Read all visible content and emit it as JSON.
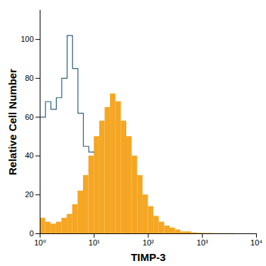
{
  "chart_data": {
    "type": "histogram",
    "x_label": "TIMP-3",
    "y_label": "Relative Cell Number",
    "log": "x",
    "grid": false,
    "bins": [
      1,
      1.259,
      1.585,
      1.995,
      2.512,
      3.162,
      3.981,
      5.012,
      6.31,
      7.943,
      10,
      12.59,
      15.85,
      19.95,
      25.12,
      31.62,
      39.81,
      50.12,
      63.1,
      79.43,
      100,
      125.9,
      158.5,
      199.5,
      251.2,
      316.2,
      398.1,
      501.2,
      631,
      794.3,
      1000,
      1259,
      1585,
      1995,
      2512,
      3162,
      3981,
      5012,
      6310,
      7943,
      10000
    ],
    "series": [
      {
        "type": "step",
        "color": "#2b5f80",
        "values": [
          60,
          68,
          64,
          70,
          80,
          102,
          85,
          62,
          45,
          42,
          null,
          null,
          null,
          null,
          null,
          null,
          null,
          null,
          null,
          null,
          null,
          null,
          null,
          null,
          null,
          null,
          null,
          null,
          null,
          null,
          null,
          null,
          null,
          null,
          null,
          null,
          null,
          null,
          null,
          null
        ]
      },
      {
        "type": "filled",
        "color": "#f5a623",
        "values": [
          8,
          6,
          5,
          6,
          8,
          10,
          15,
          22,
          30,
          40,
          50,
          58,
          65,
          72,
          68,
          58,
          50,
          40,
          30,
          20,
          14,
          9,
          6,
          4,
          3,
          2,
          1,
          1,
          0.5,
          0.3,
          0.2,
          0.2,
          0.1,
          0.1,
          0.1,
          0.1,
          0,
          0,
          0,
          0
        ]
      }
    ],
    "xlim": [
      1,
      10000
    ],
    "xticks": [
      {
        "value": 1,
        "label": "10⁰"
      },
      {
        "value": 10,
        "label": "10¹"
      },
      {
        "value": 100,
        "label": "10²"
      },
      {
        "value": 1000,
        "label": "10³"
      },
      {
        "value": 10000,
        "label": "10⁴"
      }
    ],
    "ylim": [
      0,
      115
    ],
    "yticks": [
      0,
      20,
      40,
      60,
      80,
      100
    ]
  }
}
